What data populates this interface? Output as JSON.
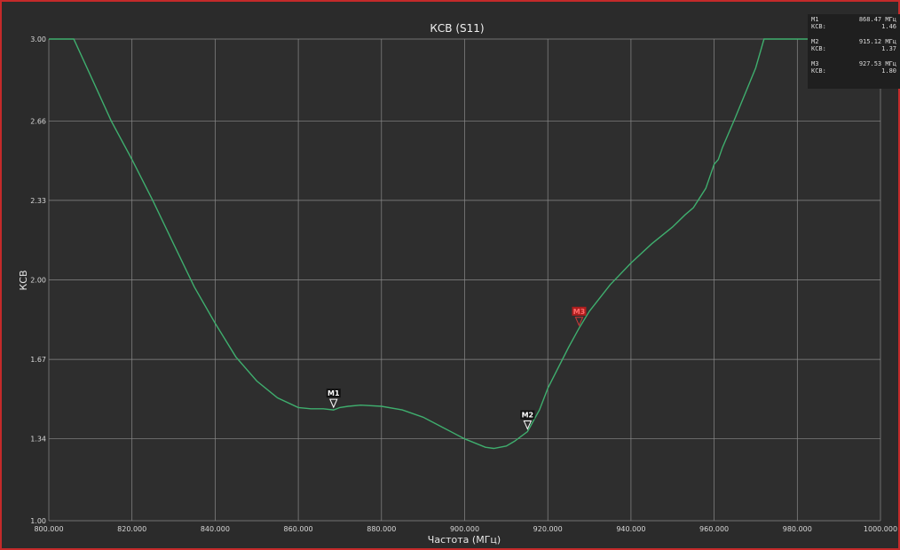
{
  "chart_data": {
    "type": "line",
    "title": "КСВ (S11)",
    "xlabel": "Частота (МГц)",
    "ylabel": "КСВ",
    "xlim": [
      800,
      1000
    ],
    "ylim": [
      1.0,
      3.0
    ],
    "x_ticks": [
      "800.000",
      "820.000",
      "840.000",
      "860.000",
      "880.000",
      "900.000",
      "920.000",
      "940.000",
      "960.000",
      "980.000",
      "1000.000"
    ],
    "y_ticks": [
      "1.00",
      "1.34",
      "1.67",
      "2.00",
      "2.33",
      "2.66",
      "3.00"
    ],
    "grid": true,
    "series": [
      {
        "color": "#3fae6e",
        "x": [
          800,
          806,
          810,
          815,
          820,
          825,
          830,
          835,
          840,
          845,
          850,
          855,
          860,
          863,
          866,
          868.47,
          870,
          872,
          875,
          880,
          885,
          890,
          895,
          900,
          905,
          907,
          910,
          912,
          915.12,
          918,
          920,
          925,
          927.53,
          930,
          935,
          940,
          945,
          950,
          953,
          955,
          958,
          960,
          961,
          962,
          965,
          970,
          972,
          975,
          980,
          985,
          990,
          995,
          1000
        ],
        "y": [
          3.0,
          3.0,
          2.85,
          2.66,
          2.5,
          2.33,
          2.15,
          1.97,
          1.82,
          1.68,
          1.58,
          1.51,
          1.47,
          1.465,
          1.465,
          1.46,
          1.47,
          1.475,
          1.48,
          1.475,
          1.46,
          1.43,
          1.385,
          1.34,
          1.305,
          1.3,
          1.31,
          1.33,
          1.37,
          1.46,
          1.55,
          1.72,
          1.8,
          1.87,
          1.98,
          2.07,
          2.15,
          2.22,
          2.27,
          2.3,
          2.38,
          2.48,
          2.5,
          2.55,
          2.67,
          2.88,
          3.0,
          3.0,
          3.0,
          3.0,
          3.0,
          3.0,
          3.0
        ]
      }
    ],
    "markers": [
      {
        "id": "M1",
        "x": 868.47,
        "y": 1.46,
        "color": "#ffffff",
        "freq": "868.47 МГц",
        "label": "КСВ:",
        "value": "1.46"
      },
      {
        "id": "M2",
        "x": 915.12,
        "y": 1.37,
        "color": "#ffffff",
        "freq": "915.12 МГц",
        "label": "КСВ:",
        "value": "1.37"
      },
      {
        "id": "M3",
        "x": 927.53,
        "y": 1.8,
        "color": "#cc2222",
        "freq": "927.53 МГц",
        "label": "КСВ:",
        "value": "1.80"
      }
    ]
  }
}
